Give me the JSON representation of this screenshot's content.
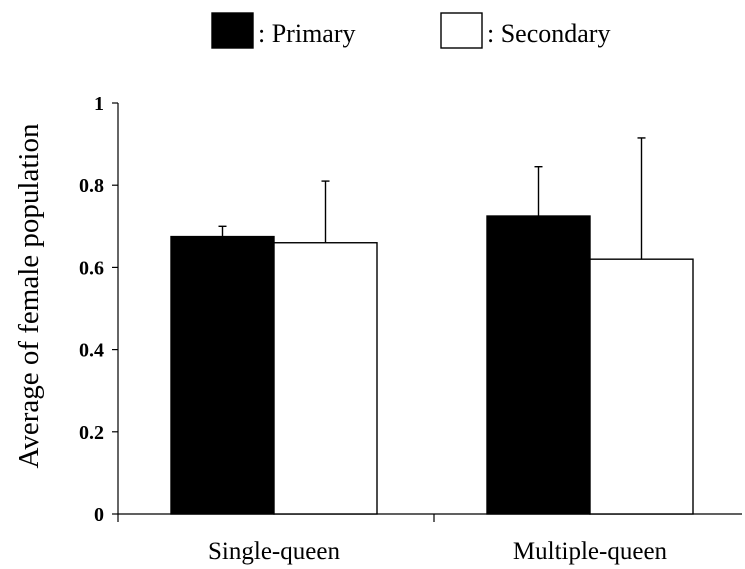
{
  "chart_data": {
    "type": "bar",
    "title": "",
    "xlabel": "",
    "ylabel": "Average of female population",
    "categories": [
      "Single-queen",
      "Multiple-queen"
    ],
    "series": [
      {
        "name": ": Primary",
        "color": "#000000",
        "values": [
          0.675,
          0.725
        ],
        "errors": [
          0.025,
          0.12
        ]
      },
      {
        "name": ": Secondary",
        "color": "#ffffff",
        "values": [
          0.66,
          0.62
        ],
        "errors": [
          0.15,
          0.295
        ]
      }
    ],
    "ylim": [
      0,
      1
    ],
    "yticks": [
      0,
      0.2,
      0.4,
      0.6,
      0.8,
      1
    ],
    "ytick_labels": [
      "0",
      "0.2",
      "0.4",
      "0.6",
      "0.8",
      "1"
    ],
    "legend_position": "top",
    "grid": false
  }
}
